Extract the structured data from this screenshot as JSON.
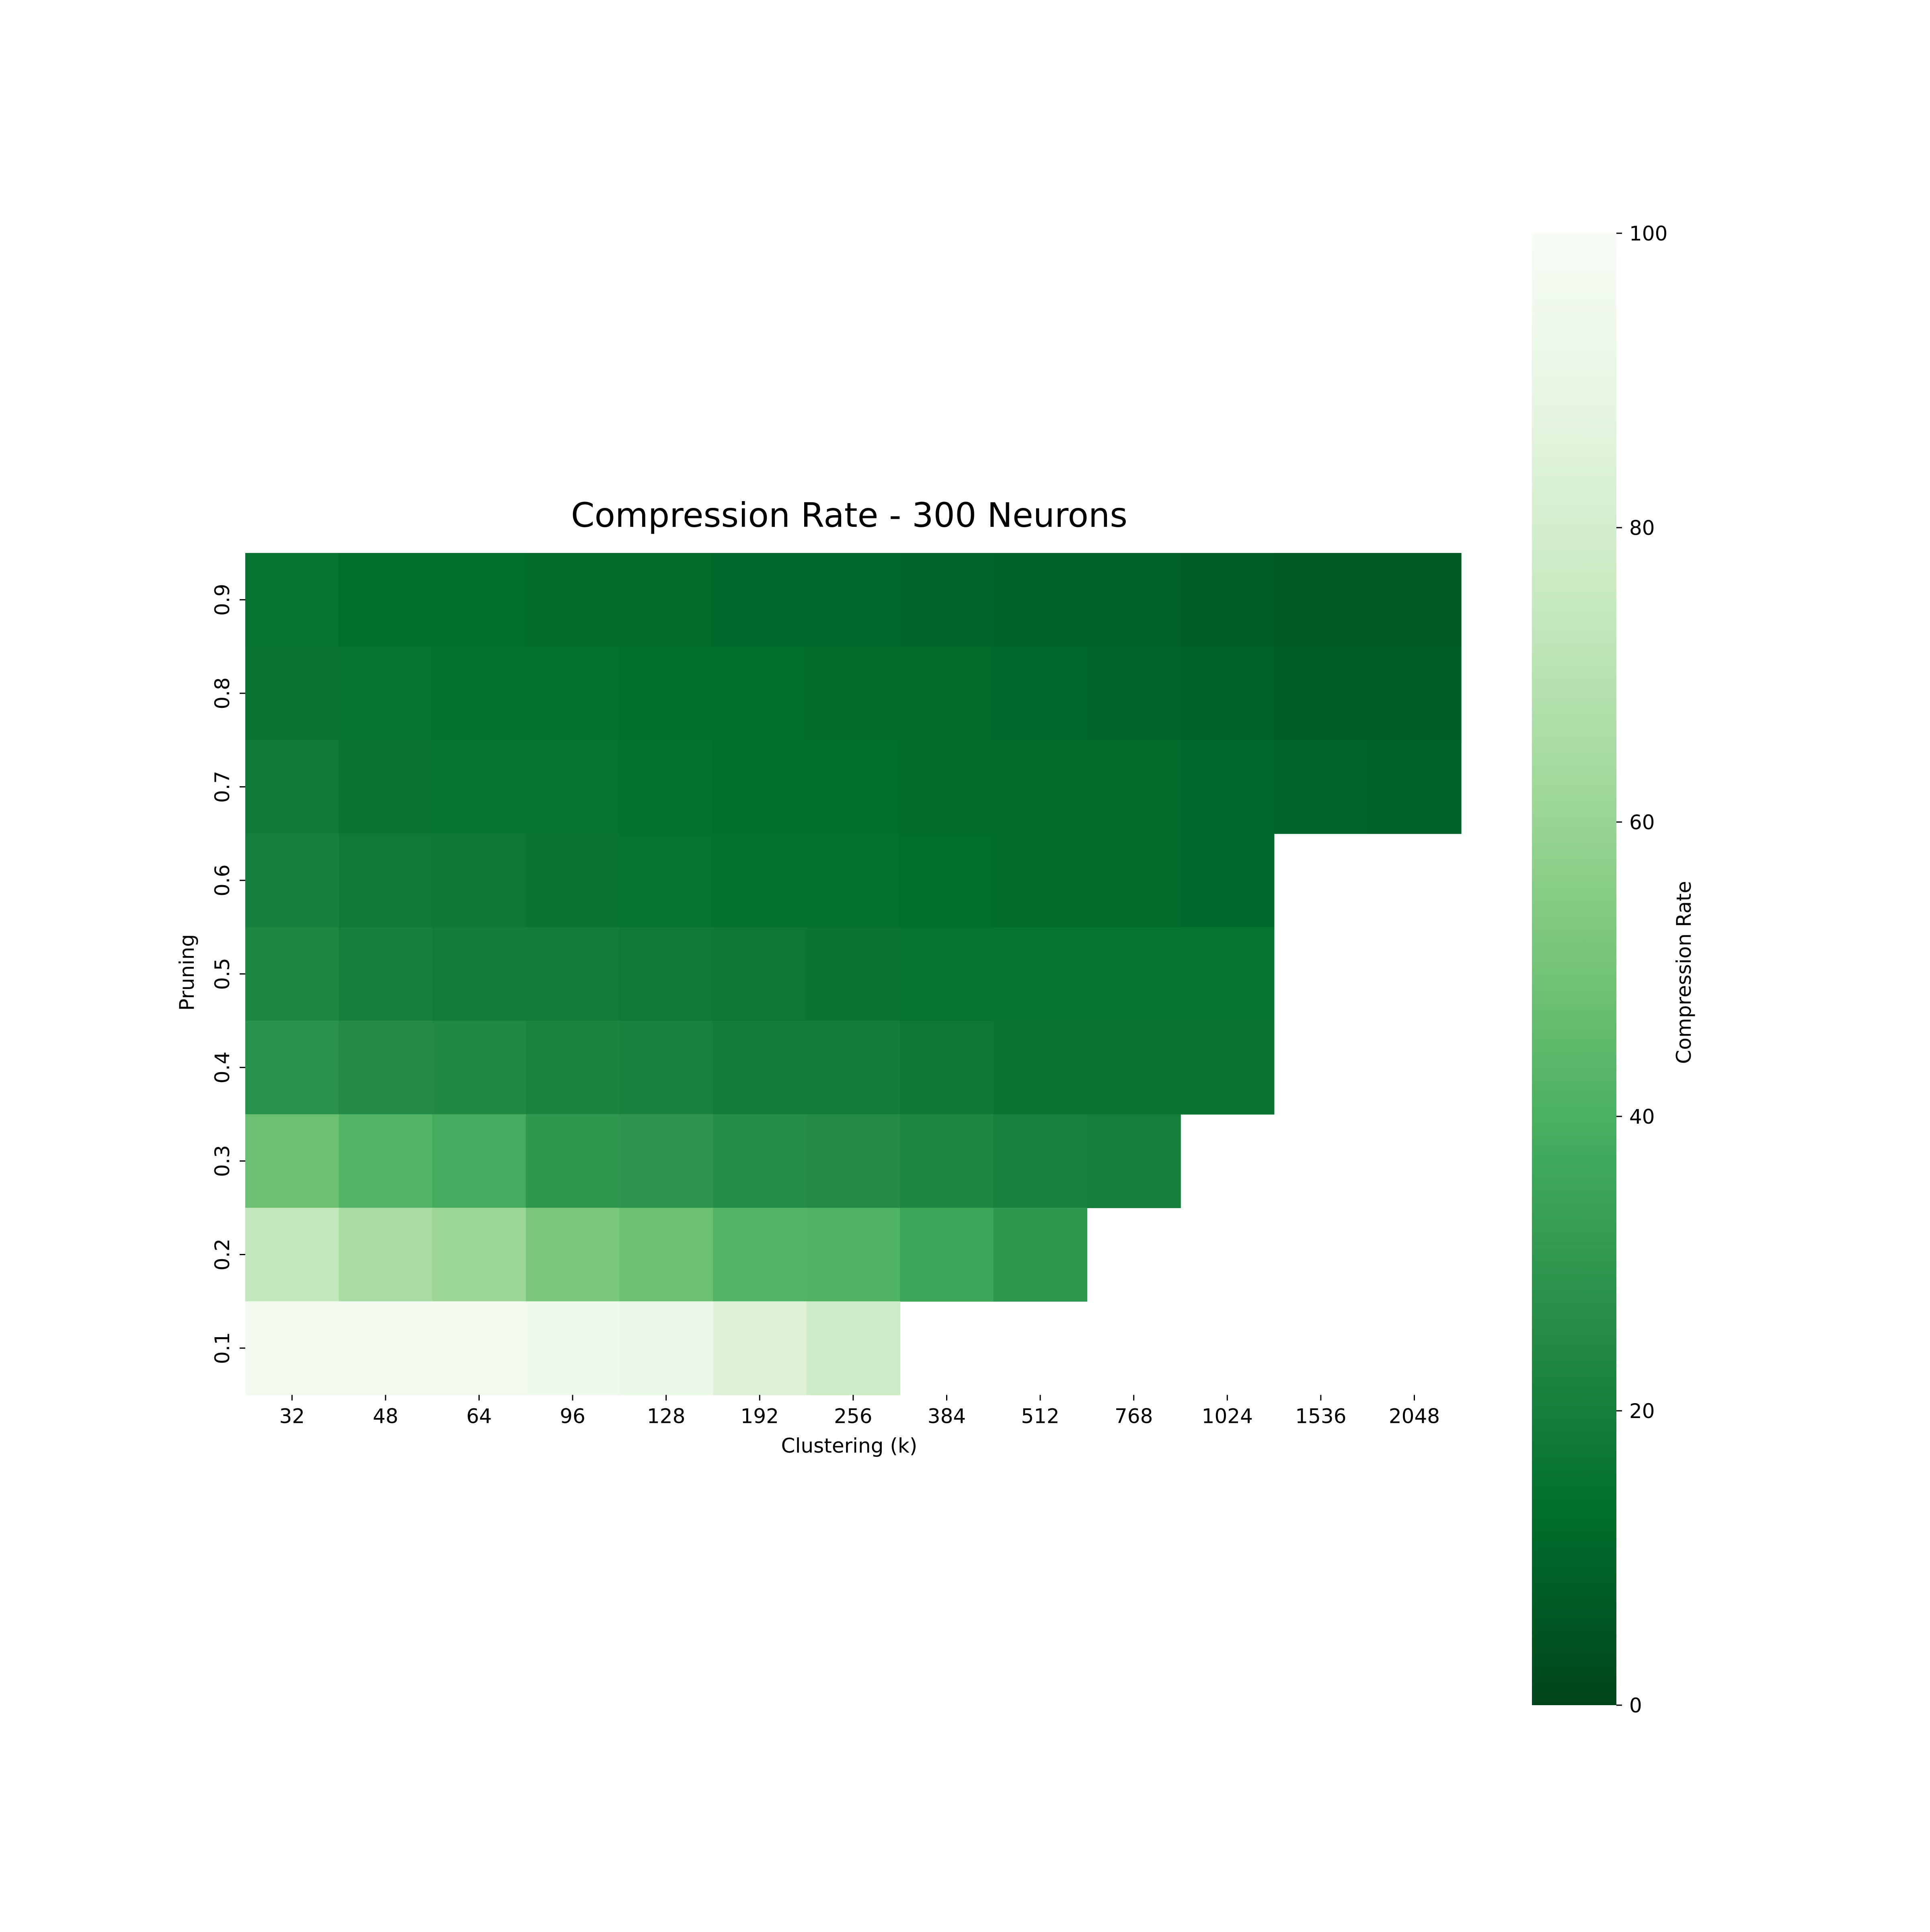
{
  "chart_data": {
    "type": "heatmap",
    "title": "Compression Rate - 300 Neurons",
    "xlabel": "Clustering (k)",
    "ylabel": "Pruning",
    "x_categories": [
      "32",
      "48",
      "64",
      "96",
      "128",
      "192",
      "256",
      "384",
      "512",
      "768",
      "1024",
      "1536",
      "2048"
    ],
    "y_categories": [
      "0.9",
      "0.8",
      "0.7",
      "0.6",
      "0.5",
      "0.4",
      "0.3",
      "0.2",
      "0.1"
    ],
    "values": [
      [
        15,
        13,
        13,
        12,
        12,
        11,
        11,
        10,
        9,
        9,
        8,
        7,
        6
      ],
      [
        16,
        15,
        14,
        14,
        13,
        13,
        12,
        12,
        11,
        10,
        9,
        8,
        8
      ],
      [
        18,
        16,
        15,
        15,
        14,
        13,
        13,
        12,
        12,
        12,
        11,
        10,
        9
      ],
      [
        20,
        18,
        17,
        16,
        15,
        14,
        14,
        13,
        12,
        12,
        11,
        null,
        null
      ],
      [
        23,
        20,
        19,
        19,
        18,
        17,
        16,
        15,
        15,
        15,
        15,
        null,
        null
      ],
      [
        28,
        25,
        24,
        22,
        21,
        19,
        19,
        17,
        16,
        16,
        16,
        null,
        null
      ],
      [
        48,
        42,
        38,
        30,
        29,
        26,
        25,
        23,
        21,
        20,
        null,
        null,
        null
      ],
      [
        74,
        65,
        61,
        52,
        48,
        42,
        41,
        35,
        30,
        null,
        null,
        null,
        null
      ],
      [
        97,
        97,
        97,
        95,
        92,
        84,
        78,
        null,
        null,
        null,
        null,
        null,
        null
      ]
    ],
    "colorbar": {
      "label": "Compression Rate",
      "range": [
        0,
        100
      ],
      "ticks": [
        "0",
        "20",
        "40",
        "60",
        "80",
        "100"
      ],
      "colormap": "Greens_r"
    },
    "colors": {
      "low": "#00441b",
      "high": "#f7fcf5"
    }
  }
}
